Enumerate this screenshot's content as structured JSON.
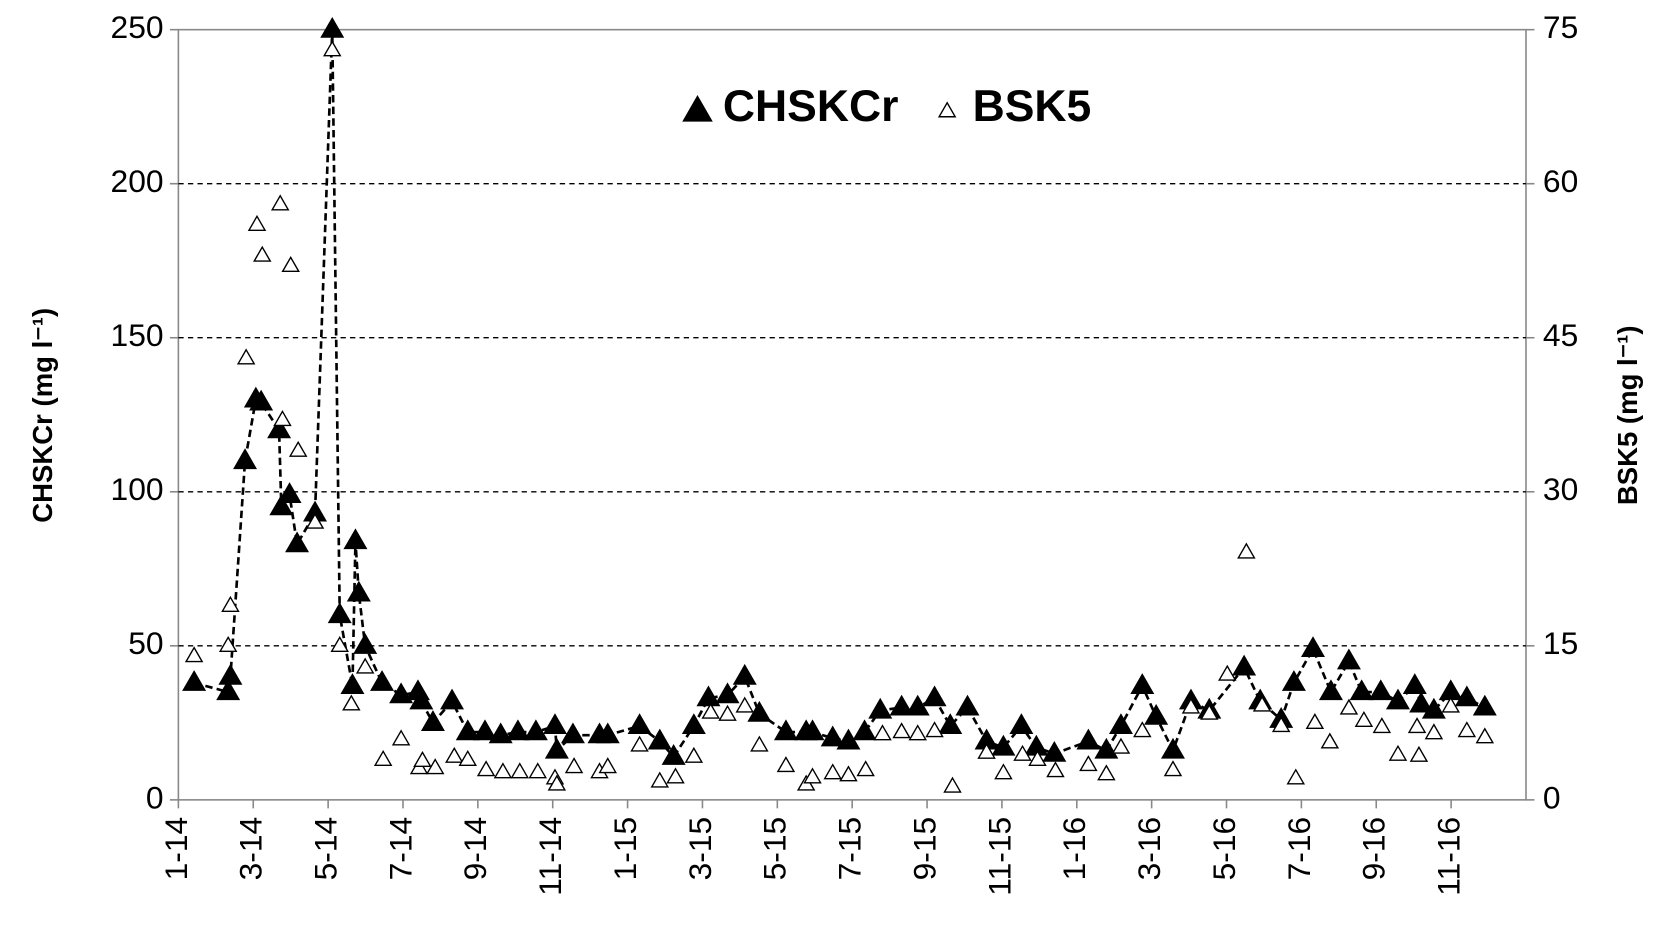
{
  "chart_data": {
    "type": "scatter",
    "xlabel_note": null,
    "ylabel": "CHSKCr (mg l⁻¹)",
    "y2label": "BSK5 (mg l⁻¹)",
    "xlim": [
      0,
      36
    ],
    "xticks": [
      {
        "value": 0,
        "label": "1-14"
      },
      {
        "value": 2,
        "label": "3-14"
      },
      {
        "value": 4,
        "label": "5-14"
      },
      {
        "value": 6,
        "label": "7-14"
      },
      {
        "value": 8,
        "label": "9-14"
      },
      {
        "value": 10,
        "label": "11-14"
      },
      {
        "value": 12,
        "label": "1-15"
      },
      {
        "value": 14,
        "label": "3-15"
      },
      {
        "value": 16,
        "label": "5-15"
      },
      {
        "value": 18,
        "label": "7-15"
      },
      {
        "value": 20,
        "label": "9-15"
      },
      {
        "value": 22,
        "label": "11-15"
      },
      {
        "value": 24,
        "label": "1-16"
      },
      {
        "value": 26,
        "label": "3-16"
      },
      {
        "value": 28,
        "label": "5-16"
      },
      {
        "value": 30,
        "label": "7-16"
      },
      {
        "value": 32,
        "label": "9-16"
      },
      {
        "value": 34,
        "label": "11-16"
      }
    ],
    "ylim": [
      0,
      250
    ],
    "yticks": [
      0,
      50,
      100,
      150,
      200,
      250
    ],
    "y2lim": [
      0,
      75
    ],
    "y2ticks": [
      0,
      15,
      30,
      45,
      60,
      75
    ],
    "grid": true,
    "legend": "upper center",
    "series": [
      {
        "name": "CHSKCr",
        "color": "#000000",
        "marker": "filled-triangle",
        "line": "dashed",
        "x": [
          0.42,
          1.33,
          1.39,
          1.78,
          2.07,
          2.21,
          2.69,
          2.75,
          2.97,
          3.17,
          3.65,
          4.11,
          4.31,
          4.65,
          4.73,
          4.82,
          4.99,
          5.44,
          5.95,
          6.4,
          6.49,
          6.8,
          7.31,
          7.73,
          8.19,
          8.61,
          9.07,
          9.55,
          10.06,
          10.11,
          10.54,
          11.25,
          11.47,
          12.32,
          12.86,
          13.23,
          13.77,
          14.16,
          14.67,
          15.13,
          15.52,
          16.23,
          16.77,
          16.94,
          17.48,
          17.9,
          18.33,
          18.75,
          19.32,
          19.75,
          20.2,
          20.62,
          21.08,
          21.59,
          22.04,
          22.52,
          22.92,
          23.4,
          24.31,
          24.79,
          25.18,
          25.75,
          26.12,
          26.57,
          27.05,
          27.54,
          28.47,
          28.9,
          29.46,
          29.8,
          30.31,
          30.79,
          31.27,
          31.61,
          32.12,
          32.58,
          33.03,
          33.2,
          33.54,
          33.99,
          34.42,
          34.9
        ],
        "values": [
          38,
          35,
          40,
          110,
          130,
          129,
          120,
          95,
          99,
          83,
          93,
          250,
          60,
          37,
          84,
          67,
          50,
          38,
          34,
          35,
          32,
          25,
          32,
          22,
          22,
          21,
          22,
          22,
          24,
          16,
          21,
          21,
          21,
          24,
          19,
          14,
          24,
          33,
          34,
          40,
          28,
          22,
          22,
          22,
          20,
          19,
          22,
          29,
          30,
          30,
          33,
          24,
          30,
          19,
          17,
          24,
          17,
          15,
          19,
          16,
          24,
          37,
          27,
          16,
          32,
          29,
          43,
          32,
          26,
          38,
          49,
          35,
          45,
          35,
          35,
          32,
          37,
          31,
          29,
          35,
          33,
          30
        ]
      },
      {
        "name": "BSK5",
        "color": "#000000",
        "marker": "open-triangle",
        "axis": "y2",
        "x": [
          0.42,
          1.33,
          1.39,
          1.81,
          2.1,
          2.24,
          2.72,
          2.78,
          3.0,
          3.2,
          3.65,
          4.11,
          4.31,
          4.62,
          4.99,
          5.47,
          5.95,
          6.43,
          6.52,
          6.86,
          7.37,
          7.73,
          8.22,
          8.67,
          9.12,
          9.6,
          10.06,
          10.11,
          10.57,
          11.25,
          11.47,
          12.32,
          12.86,
          13.28,
          13.77,
          14.22,
          14.67,
          15.13,
          15.52,
          16.23,
          16.77,
          16.94,
          17.48,
          17.9,
          18.36,
          18.81,
          19.32,
          19.75,
          20.2,
          20.68,
          21.59,
          22.04,
          22.55,
          22.95,
          23.43,
          24.31,
          24.79,
          25.18,
          25.75,
          26.57,
          27.05,
          27.54,
          28.02,
          28.53,
          28.95,
          29.46,
          29.85,
          30.36,
          30.76,
          31.27,
          31.67,
          32.15,
          32.58,
          33.09,
          33.14,
          33.54,
          33.99,
          34.42,
          34.9
        ],
        "values": [
          14,
          15,
          18.9,
          43,
          56,
          53,
          58,
          37,
          52,
          34,
          27,
          73,
          15,
          9.3,
          12.9,
          3.9,
          5.9,
          3.1,
          3.8,
          3.1,
          4.2,
          3.9,
          2.9,
          2.7,
          2.7,
          2.7,
          2.1,
          1.5,
          3.2,
          2.7,
          3.2,
          5.3,
          1.8,
          2.2,
          4.2,
          8.5,
          8.3,
          9.1,
          5.3,
          3.3,
          1.5,
          2.2,
          2.6,
          2.4,
          2.9,
          6.4,
          6.6,
          6.4,
          6.7,
          1.3,
          4.6,
          2.6,
          4.4,
          3.9,
          2.8,
          3.4,
          2.5,
          5.1,
          6.7,
          2.9,
          9,
          8.4,
          12.2,
          24.1,
          9.2,
          7.2,
          2.1,
          7.5,
          5.6,
          8.9,
          7.7,
          7.1,
          4.4,
          7.1,
          4.3,
          6.5,
          9.1,
          6.7,
          6.1
        ]
      }
    ]
  }
}
